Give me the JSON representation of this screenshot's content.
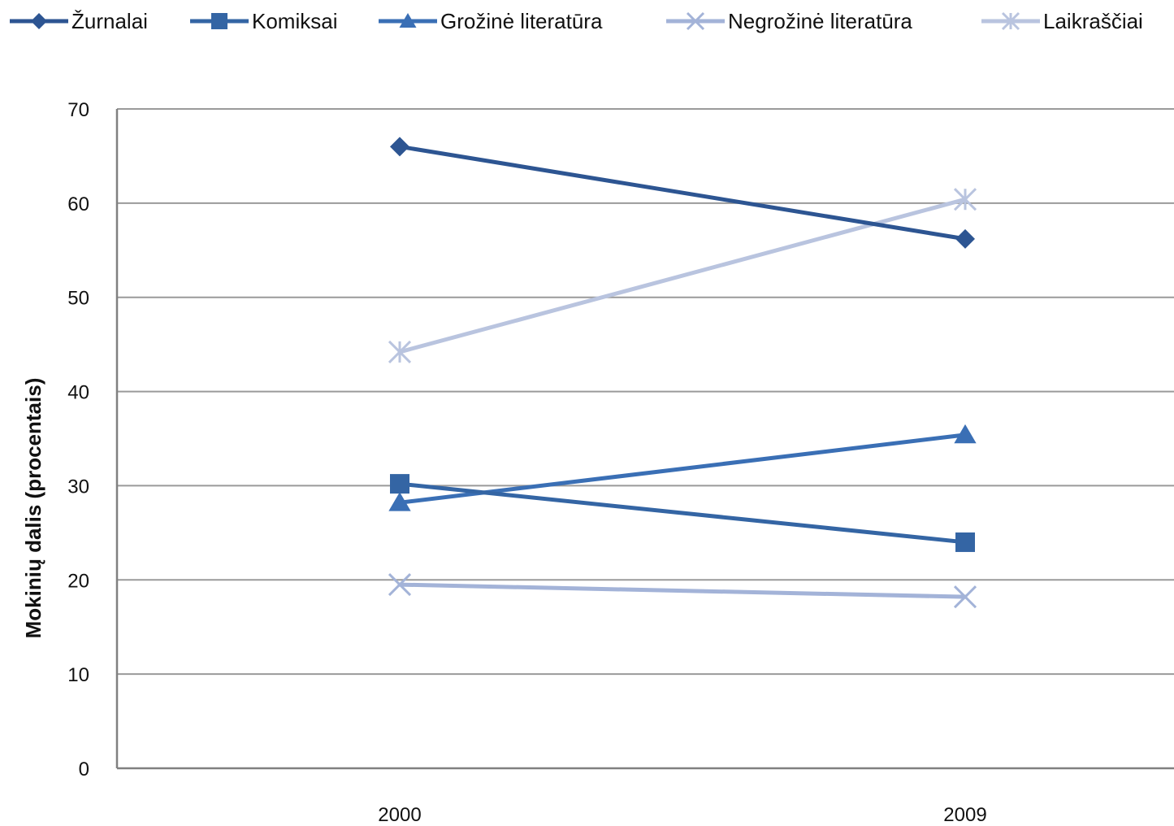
{
  "chart_data": {
    "type": "line",
    "categories": [
      "2000",
      "2009"
    ],
    "ylabel": "Mokinių dalis (procentais)",
    "xlabel": "",
    "ylim": [
      0,
      70
    ],
    "yticks": [
      "0",
      "10",
      "20",
      "30",
      "40",
      "50",
      "60",
      "70"
    ],
    "grid": "horizontal",
    "legend_position": "top",
    "series": [
      {
        "name": "Žurnalai",
        "values": [
          66,
          56.2
        ],
        "color": "#2d5592",
        "marker": "diamond"
      },
      {
        "name": "Komiksai",
        "values": [
          30.2,
          24
        ],
        "color": "#3465a4",
        "marker": "square"
      },
      {
        "name": "Grožinė literatūra",
        "values": [
          28.2,
          35.4
        ],
        "color": "#3a6fb5",
        "marker": "triangle"
      },
      {
        "name": "Negrožinė literatūra",
        "values": [
          19.5,
          18.2
        ],
        "color": "#a3b3d8",
        "marker": "x"
      },
      {
        "name": "Laikraščiai",
        "values": [
          44.2,
          60.4
        ],
        "color": "#b9c4df",
        "marker": "star"
      }
    ]
  }
}
